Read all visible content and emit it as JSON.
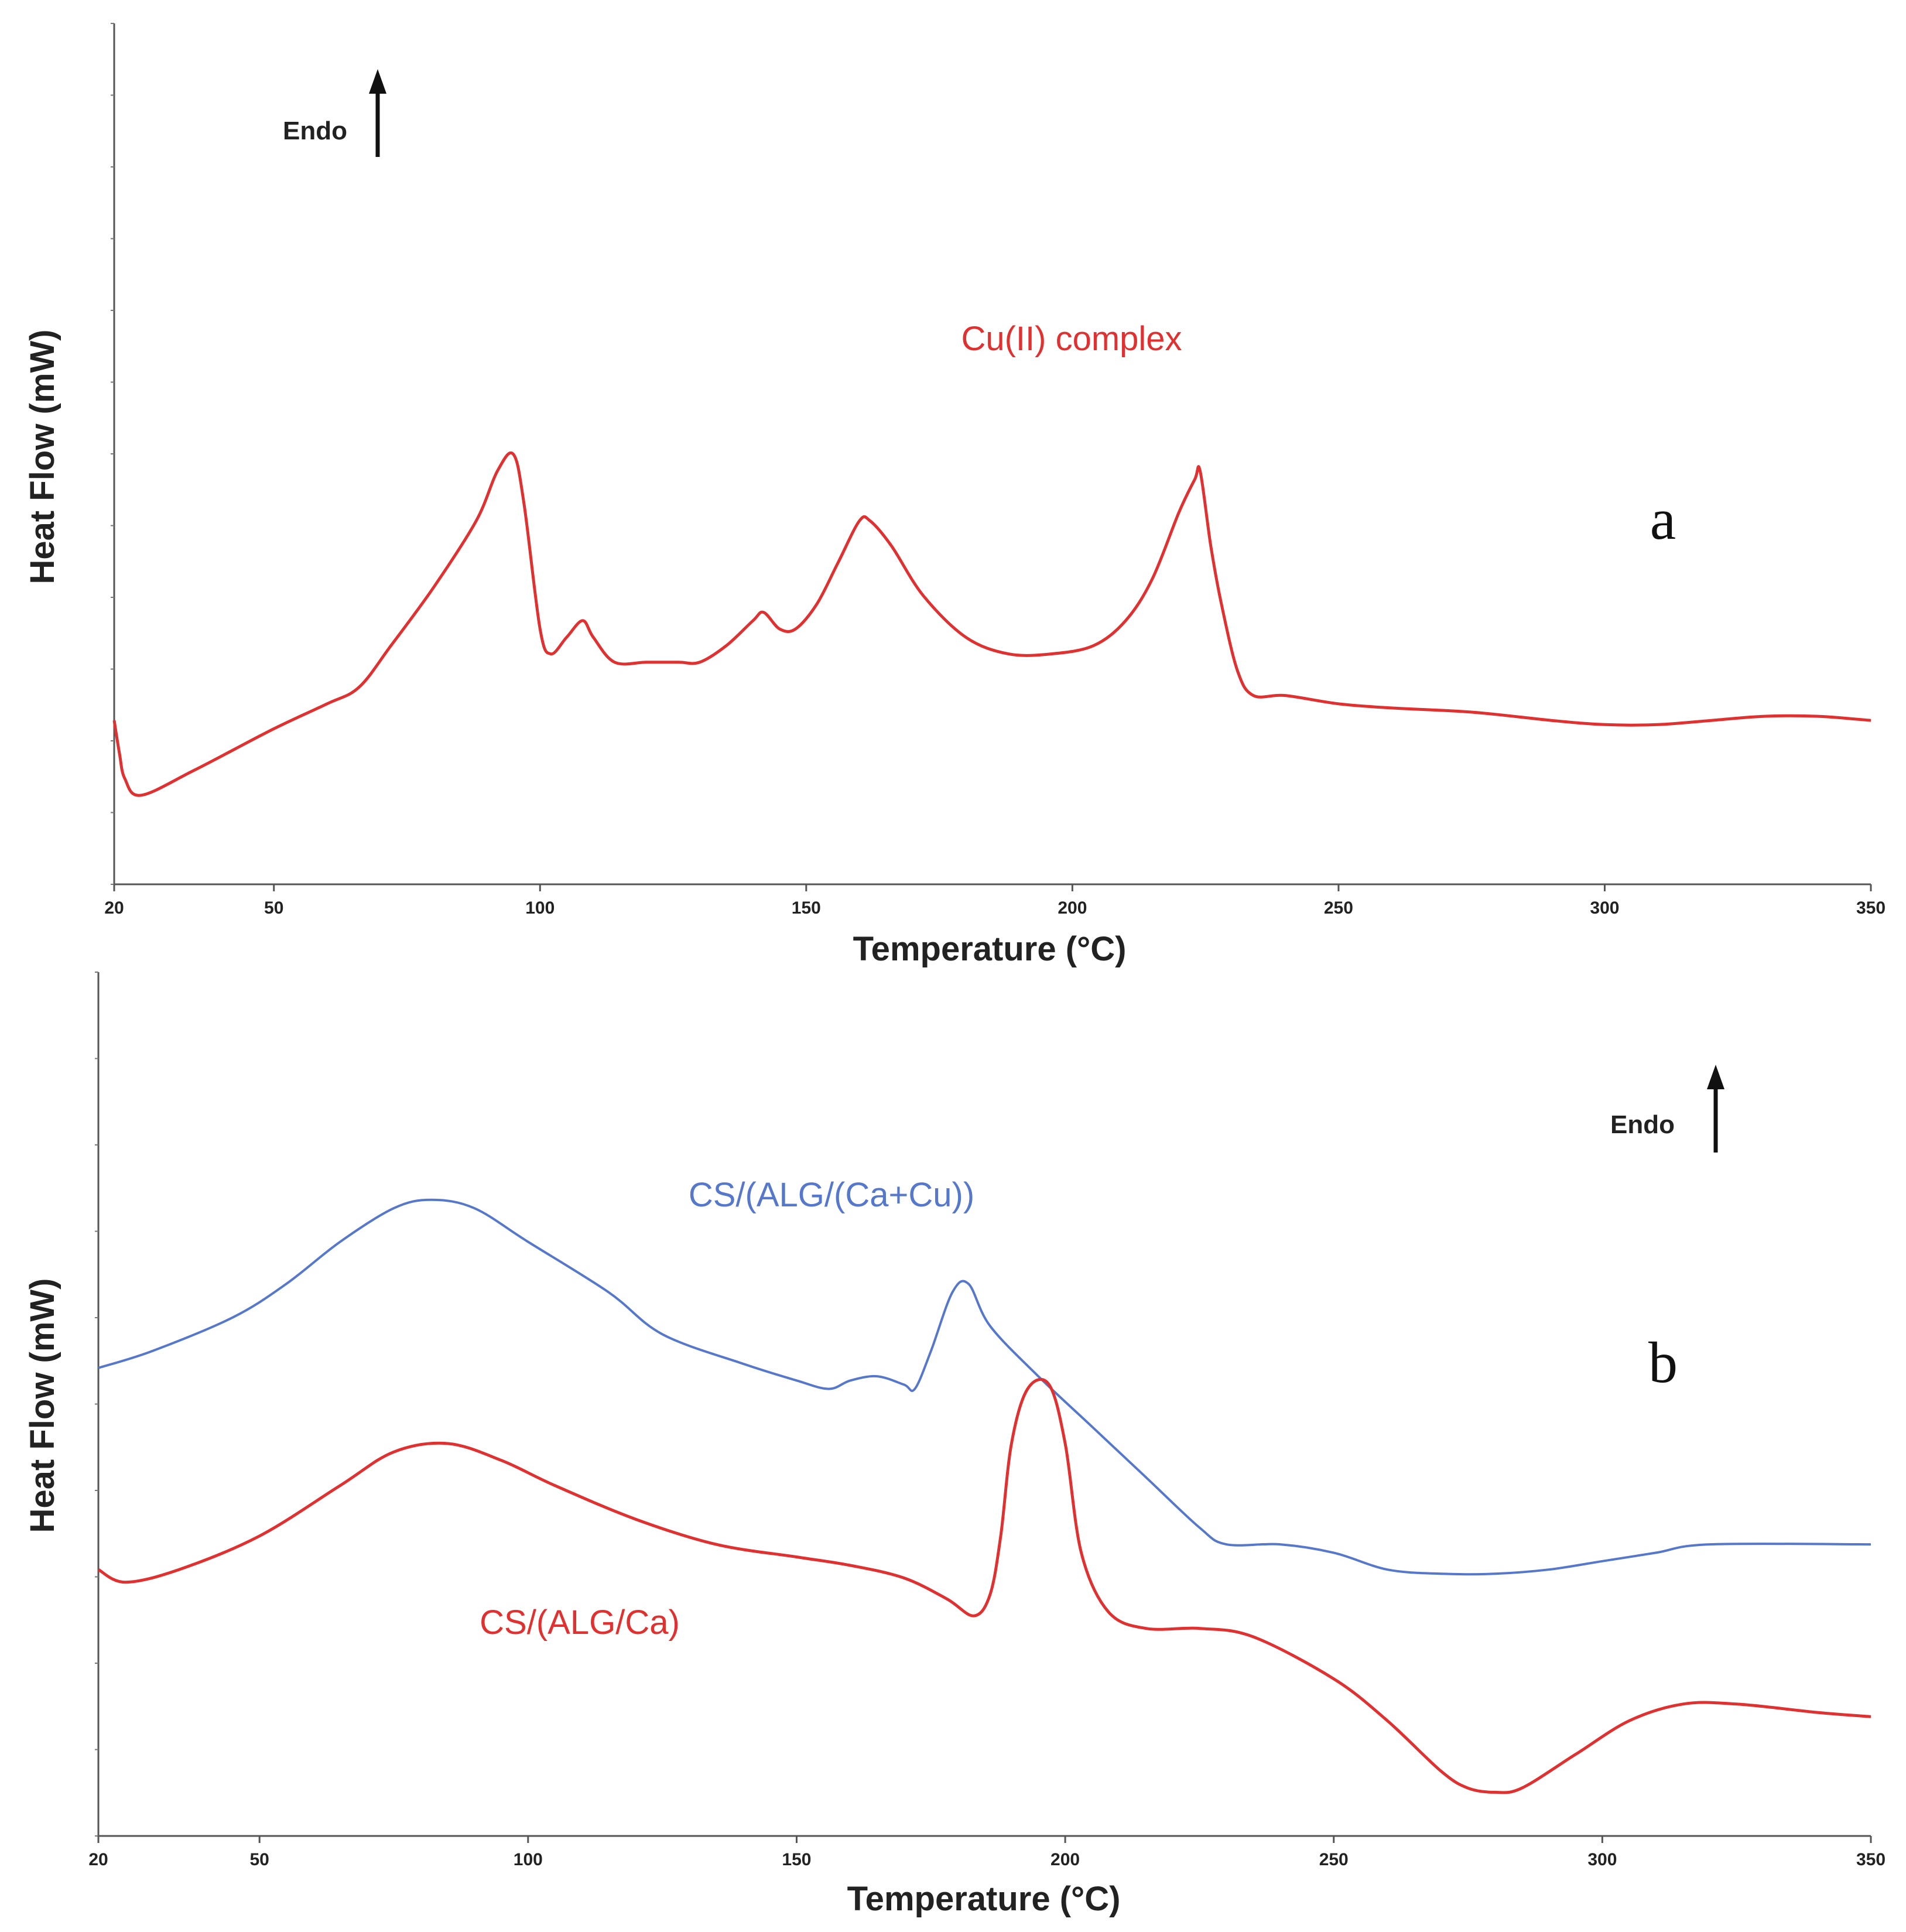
{
  "chart_data": [
    {
      "type": "line",
      "panel_label": "a",
      "xlabel": "Temperature (°C)",
      "ylabel": "Heat Flow (mW)",
      "xlim": [
        20,
        350
      ],
      "ylim": [
        0,
        100
      ],
      "x_ticks": [
        20,
        50,
        100,
        150,
        200,
        250,
        300,
        350
      ],
      "y_ticks_labeled": false,
      "grid": false,
      "endo_label": "Endo",
      "series": [
        {
          "name": "Cu(II) complex",
          "color": "#e03030",
          "points": [
            [
              20,
              19
            ],
            [
              21,
              15
            ],
            [
              22,
              12
            ],
            [
              25,
              10
            ],
            [
              35,
              13
            ],
            [
              50,
              18
            ],
            [
              60,
              21
            ],
            [
              66,
              23
            ],
            [
              72,
              28
            ],
            [
              80,
              35
            ],
            [
              88,
              43
            ],
            [
              92,
              49
            ],
            [
              95,
              51
            ],
            [
              97,
              45
            ],
            [
              100,
              30
            ],
            [
              102,
              27
            ],
            [
              105,
              29
            ],
            [
              108,
              31
            ],
            [
              110,
              29
            ],
            [
              114,
              26
            ],
            [
              120,
              26
            ],
            [
              126,
              26
            ],
            [
              130,
              26
            ],
            [
              135,
              28
            ],
            [
              140,
              31
            ],
            [
              142,
              32
            ],
            [
              145,
              30
            ],
            [
              148,
              30
            ],
            [
              152,
              33
            ],
            [
              156,
              38
            ],
            [
              160,
              43
            ],
            [
              162,
              43
            ],
            [
              166,
              40
            ],
            [
              172,
              34
            ],
            [
              180,
              29
            ],
            [
              188,
              27
            ],
            [
              196,
              27
            ],
            [
              204,
              28
            ],
            [
              210,
              31
            ],
            [
              215,
              36
            ],
            [
              220,
              44
            ],
            [
              223,
              48
            ],
            [
              224,
              49
            ],
            [
              226,
              40
            ],
            [
              228,
              33
            ],
            [
              231,
              25
            ],
            [
              234,
              22
            ],
            [
              240,
              22
            ],
            [
              250,
              21
            ],
            [
              260,
              20.5
            ],
            [
              275,
              20
            ],
            [
              290,
              19
            ],
            [
              300,
              18.5
            ],
            [
              310,
              18.5
            ],
            [
              320,
              19
            ],
            [
              330,
              19.5
            ],
            [
              340,
              19.5
            ],
            [
              350,
              19
            ]
          ]
        }
      ]
    },
    {
      "type": "line",
      "panel_label": "b",
      "xlabel": "Temperature (°C)",
      "ylabel": "Heat Flow (mW)",
      "xlim": [
        20,
        350
      ],
      "ylim": [
        0,
        100
      ],
      "x_ticks": [
        20,
        50,
        100,
        150,
        200,
        250,
        300,
        350
      ],
      "y_ticks_labeled": false,
      "grid": false,
      "endo_label": "Endo",
      "series": [
        {
          "name": "CS/(ALG/(Ca+Cu))",
          "color": "#5577cc",
          "points": [
            [
              20,
              55
            ],
            [
              30,
              57
            ],
            [
              45,
              61
            ],
            [
              55,
              65
            ],
            [
              65,
              70
            ],
            [
              75,
              74
            ],
            [
              82,
              75
            ],
            [
              90,
              74
            ],
            [
              100,
              70
            ],
            [
              115,
              64
            ],
            [
              125,
              59
            ],
            [
              140,
              55.5
            ],
            [
              150,
              53.5
            ],
            [
              156,
              52.5
            ],
            [
              160,
              53.5
            ],
            [
              165,
              54
            ],
            [
              170,
              53
            ],
            [
              172,
              52.5
            ],
            [
              175,
              57
            ],
            [
              179,
              64
            ],
            [
              182,
              65
            ],
            [
              186,
              60
            ],
            [
              195,
              54
            ],
            [
              205,
              48
            ],
            [
              215,
              42
            ],
            [
              225,
              36
            ],
            [
              230,
              34
            ],
            [
              240,
              34
            ],
            [
              250,
              33
            ],
            [
              260,
              31
            ],
            [
              270,
              30.5
            ],
            [
              280,
              30.5
            ],
            [
              290,
              31
            ],
            [
              300,
              32
            ],
            [
              310,
              33
            ],
            [
              320,
              34
            ],
            [
              350,
              34
            ]
          ]
        },
        {
          "name": "CS/(ALG/Ca)",
          "color": "#e03030",
          "points": [
            [
              20,
              31
            ],
            [
              25,
              29.5
            ],
            [
              35,
              31
            ],
            [
              50,
              35
            ],
            [
              65,
              41
            ],
            [
              75,
              45
            ],
            [
              85,
              46
            ],
            [
              95,
              44
            ],
            [
              105,
              41
            ],
            [
              120,
              37
            ],
            [
              135,
              34
            ],
            [
              150,
              32.5
            ],
            [
              160,
              31.5
            ],
            [
              170,
              30
            ],
            [
              178,
              27.5
            ],
            [
              183,
              25.5
            ],
            [
              186,
              28
            ],
            [
              188,
              35
            ],
            [
              190,
              46
            ],
            [
              193,
              52.5
            ],
            [
              197,
              53
            ],
            [
              200,
              46
            ],
            [
              203,
              33
            ],
            [
              208,
              26
            ],
            [
              215,
              24
            ],
            [
              225,
              24
            ],
            [
              235,
              23
            ],
            [
              250,
              18
            ],
            [
              260,
              13
            ],
            [
              270,
              7
            ],
            [
              275,
              5
            ],
            [
              280,
              4.5
            ],
            [
              285,
              5
            ],
            [
              295,
              9
            ],
            [
              305,
              13
            ],
            [
              315,
              15
            ],
            [
              325,
              15
            ],
            [
              340,
              14
            ],
            [
              350,
              13.5
            ]
          ]
        }
      ]
    }
  ]
}
